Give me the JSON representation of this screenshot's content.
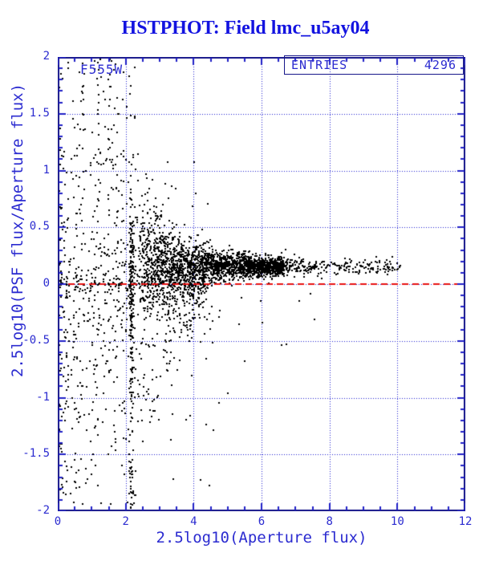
{
  "page": {
    "title": "HSTPHOT: Field lmc_u5ay04"
  },
  "colors": {
    "title": "#1313e0",
    "axis_text": "#2b2bd0",
    "frame": "#16168a",
    "tick": "#2020c8",
    "grid": "#1f1fd4",
    "points": "#000000",
    "ref_line": "#e81212",
    "background": "#ffffff"
  },
  "chart_data": {
    "type": "scatter",
    "title": "HSTPHOT: Field lmc_u5ay04",
    "series_label": "F555W",
    "entries_label": "ENTRIES",
    "entries_value": "4296",
    "entries": 4296,
    "xlabel": "2.5log10(Aperture flux)",
    "ylabel": "2.5log10(PSF flux/Aperture flux)",
    "xlim": [
      0,
      12
    ],
    "ylim": [
      -2,
      2
    ],
    "x_ticks": [
      {
        "v": 0,
        "label": "0"
      },
      {
        "v": 2,
        "label": "2"
      },
      {
        "v": 4,
        "label": "4"
      },
      {
        "v": 6,
        "label": "6"
      },
      {
        "v": 8,
        "label": "8"
      },
      {
        "v": 10,
        "label": "10"
      },
      {
        "v": 12,
        "label": "12"
      }
    ],
    "y_ticks": [
      {
        "v": 2,
        "label": "2"
      },
      {
        "v": 1.5,
        "label": "1.5"
      },
      {
        "v": 1,
        "label": "1"
      },
      {
        "v": 0.5,
        "label": "0.5"
      },
      {
        "v": 0,
        "label": "0"
      },
      {
        "v": -0.5,
        "label": "-0.5"
      },
      {
        "v": -1,
        "label": "-1"
      },
      {
        "v": -1.5,
        "label": "-1.5"
      },
      {
        "v": -2,
        "label": "-2"
      }
    ],
    "x_minor_step": 0.5,
    "y_minor_step": 0.1,
    "grid": {
      "x_lines": [
        2,
        4,
        6,
        8,
        10
      ],
      "y_lines": [
        -1.5,
        -1,
        -0.5,
        0,
        0.5,
        1,
        1.5
      ],
      "style": "dotted"
    },
    "reference_line": {
      "y": 0,
      "style": "dashed"
    },
    "point_size": 2,
    "description": "Aperture-correction diagnostic scatter of 4296 stars: quantization arcs fan out over 0<x<4.5 spanning -2<y<2, a dense vertical clump near x=2.17, and a tight horizontal stellar locus at y=0.15 running from x=2.4 out to x=10 that thins beyond x=6.6; a few negative outliers lie at 3<x<8.",
    "generators": {
      "seed": 1337,
      "arc_grid": {
        "m_max": 68,
        "keep_base": 5.0,
        "fade_pos": 1.7,
        "fade_neg": 1.05,
        "x_jitter": 0.06,
        "y_jitter": 0.02
      },
      "column": {
        "x_center": 2.17,
        "x_sigma": 0.035,
        "count": 240,
        "y_min": -2,
        "y_max": 0.55
      },
      "noise": {
        "count": 1000,
        "x_max": 4.4
      },
      "outliers": {
        "count": 36,
        "x_min": 3.2,
        "x_max": 7.8
      },
      "band": {
        "x_start": 2.4,
        "x_break": 6.6,
        "x_end": 10.1,
        "tail_fraction": 0.12,
        "y_center": 0.15,
        "sigma_floor": 0.035,
        "sigma_amp": 0.28,
        "max_count": 2300
      }
    }
  }
}
